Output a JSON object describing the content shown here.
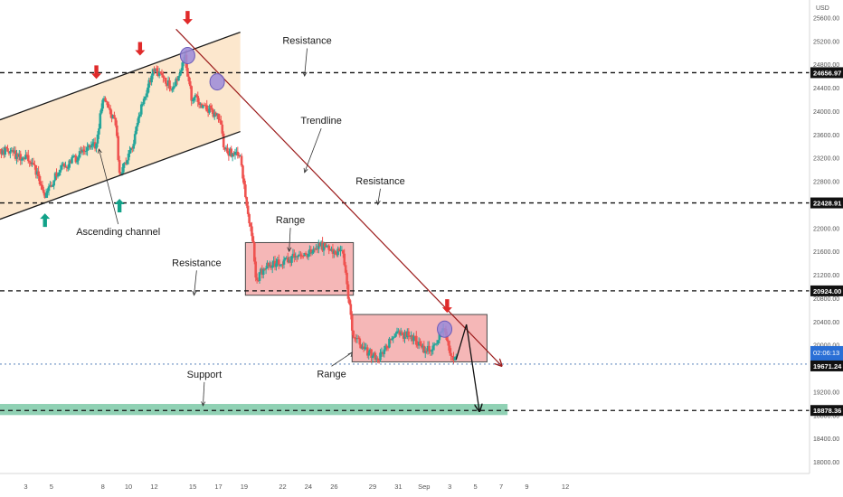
{
  "chart_data": {
    "type": "candlestick",
    "currency": "USD",
    "ylim": [
      17800,
      25900
    ],
    "xlim": [
      0,
      63
    ],
    "y_ticks": [
      18000,
      18400,
      18800,
      19200,
      19600,
      20000,
      20400,
      20800,
      21200,
      21600,
      22000,
      22400,
      22800,
      23200,
      23600,
      24000,
      24400,
      24800,
      25200,
      25600
    ],
    "y_tick_labels": [
      "18000.00",
      "18400.00",
      "18800.00",
      "19200.00",
      "19600.00",
      "20000.00",
      "20400.00",
      "20800.00",
      "21200.00",
      "21600.00",
      "22000.00",
      "22400.00",
      "22800.00",
      "23200.00",
      "23600.00",
      "24000.00",
      "24400.00",
      "24800.00",
      "25200.00",
      "25600.00"
    ],
    "x_ticks": [
      {
        "d": 2,
        "label": "3"
      },
      {
        "d": 4,
        "label": "5"
      },
      {
        "d": 8,
        "label": "8"
      },
      {
        "d": 10,
        "label": "10"
      },
      {
        "d": 12,
        "label": "12"
      },
      {
        "d": 15,
        "label": "15"
      },
      {
        "d": 17,
        "label": "17"
      },
      {
        "d": 19,
        "label": "19"
      },
      {
        "d": 22,
        "label": "22"
      },
      {
        "d": 24,
        "label": "24"
      },
      {
        "d": 26,
        "label": "26"
      },
      {
        "d": 29,
        "label": "29"
      },
      {
        "d": 31,
        "label": "31"
      },
      {
        "d": 33,
        "label": "Sep"
      },
      {
        "d": 35,
        "label": "3"
      },
      {
        "d": 37,
        "label": "5"
      },
      {
        "d": 39,
        "label": "7"
      },
      {
        "d": 41,
        "label": "9"
      },
      {
        "d": 44,
        "label": "12"
      }
    ],
    "levels": [
      {
        "label": "24656.97",
        "price": 24656.97
      },
      {
        "label": "22428.91",
        "price": 22428.91
      },
      {
        "label": "20924.00",
        "price": 20924.0
      },
      {
        "label": "18878.36",
        "price": 18878.36
      }
    ],
    "current_price": {
      "price": 19671.24,
      "label": "19671.24",
      "countdown": "02:06:13"
    },
    "price_path": [
      [
        0,
        23350
      ],
      [
        2.5,
        23150
      ],
      [
        3.5,
        22550
      ],
      [
        4.5,
        22950
      ],
      [
        6.5,
        23300
      ],
      [
        7.5,
        23450
      ],
      [
        8,
        24200
      ],
      [
        9,
        23800
      ],
      [
        9.3,
        22900
      ],
      [
        10.3,
        23400
      ],
      [
        11,
        24100
      ],
      [
        12,
        24700
      ],
      [
        13.5,
        24400
      ],
      [
        14.4,
        24950
      ],
      [
        14.9,
        24250
      ],
      [
        15.8,
        24100
      ],
      [
        17.1,
        23900
      ],
      [
        17.5,
        23300
      ],
      [
        18.7,
        23250
      ],
      [
        19.2,
        22400
      ],
      [
        19.7,
        21800
      ],
      [
        19.9,
        21100
      ],
      [
        20.5,
        21300
      ],
      [
        22,
        21450
      ],
      [
        24,
        21550
      ],
      [
        25,
        21700
      ],
      [
        26.7,
        21550
      ],
      [
        27.1,
        20800
      ],
      [
        27.5,
        20150
      ],
      [
        28.5,
        19900
      ],
      [
        29.5,
        19750
      ],
      [
        30.7,
        20200
      ],
      [
        32,
        20150
      ],
      [
        33,
        19900
      ],
      [
        34,
        20000
      ],
      [
        34.5,
        20350
      ],
      [
        35,
        19900
      ],
      [
        35.5,
        19750
      ]
    ],
    "channel": {
      "upper": [
        [
          0,
          23850
        ],
        [
          18.7,
          25350
        ]
      ],
      "lower": [
        [
          0,
          22150
        ],
        [
          18.7,
          23650
        ]
      ]
    },
    "trendline": [
      [
        13.7,
        25400
      ],
      [
        39,
        19650
      ]
    ],
    "touch_points": [
      [
        14.6,
        24950
      ],
      [
        16.9,
        24500
      ],
      [
        34.6,
        20270
      ]
    ],
    "ranges": [
      {
        "x": [
          19.1,
          27.5
        ],
        "y": [
          20850,
          21750
        ]
      },
      {
        "x": [
          27.4,
          37.9
        ],
        "y": [
          19710,
          20520
        ]
      }
    ],
    "support_zone": {
      "x": [
        0,
        39.5
      ],
      "y": [
        18800,
        18990
      ]
    },
    "projection": [
      [
        35.5,
        19750
      ],
      [
        36.3,
        20350
      ],
      [
        37.3,
        18880
      ]
    ],
    "annotations": [
      {
        "text": "Resistance",
        "at": [
          23.9,
          25150
        ],
        "pointer": [
          23.7,
          24600
        ]
      },
      {
        "text": "Trendline",
        "at": [
          25,
          23780
        ],
        "pointer": [
          23.7,
          22950
        ]
      },
      {
        "text": "Resistance",
        "at": [
          29.6,
          22750
        ],
        "pointer": [
          29.4,
          22400
        ]
      },
      {
        "text": "Range",
        "at": [
          22.6,
          22080
        ],
        "pointer": [
          22.5,
          21600
        ]
      },
      {
        "text": "Resistance",
        "at": [
          15.3,
          21350
        ],
        "pointer": [
          15.1,
          20850
        ]
      },
      {
        "text": "Ascending channel",
        "at": [
          9.2,
          21880
        ],
        "pointer": [
          7.7,
          23350
        ]
      },
      {
        "text": "Range",
        "at": [
          25.8,
          19450
        ],
        "pointer": [
          27.4,
          19870
        ]
      },
      {
        "text": "Support",
        "at": [
          15.9,
          19440
        ],
        "pointer": [
          15.8,
          18960
        ]
      }
    ],
    "arrows": [
      {
        "dir": "down",
        "d": 7.5,
        "price": 24550
      },
      {
        "dir": "down",
        "d": 10.9,
        "price": 24950
      },
      {
        "dir": "down",
        "d": 14.6,
        "price": 25480
      },
      {
        "dir": "down",
        "d": 34.8,
        "price": 20550
      },
      {
        "dir": "up",
        "d": 3.5,
        "price": 22250
      },
      {
        "dir": "up",
        "d": 9.3,
        "price": 22500
      }
    ],
    "colors": {
      "up": "#26a69a",
      "down": "#ef5350",
      "channel_fill": "#fbe3c4",
      "range_fill": "#f2a5a5",
      "range_stroke": "#4a4a4a",
      "trendline": "#9b1b1b",
      "support_fill": "#7cc9a7",
      "touch_fill": "#9b8ad9",
      "signal_down": "#e02a2a",
      "signal_up": "#12a289"
    }
  }
}
